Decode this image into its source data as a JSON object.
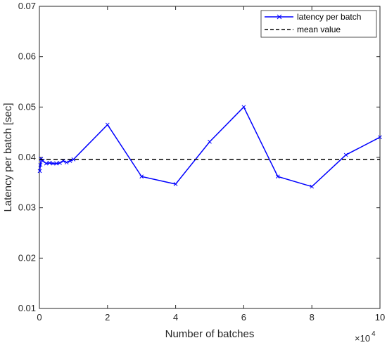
{
  "chart_data": {
    "type": "line",
    "xlabel": "Number of batches",
    "ylabel": "Latency per batch [sec]",
    "x_exponent_label": "×10",
    "x_exponent_power": "4",
    "xlim": [
      0,
      10
    ],
    "ylim": [
      0.01,
      0.07
    ],
    "x_scale_note": "x values shown in units of 10^4 batches",
    "x_ticks": [
      0,
      2,
      4,
      6,
      8,
      10
    ],
    "x_tick_labels": [
      "0",
      "2",
      "4",
      "6",
      "8",
      "10"
    ],
    "y_ticks": [
      0.01,
      0.02,
      0.03,
      0.04,
      0.05,
      0.06,
      0.07
    ],
    "y_tick_labels": [
      "0.01",
      "0.02",
      "0.03",
      "0.04",
      "0.05",
      "0.06",
      "0.07"
    ],
    "grid": false,
    "legend_position": "top-right",
    "series": [
      {
        "name": "latency per batch",
        "color": "#0000ff",
        "style": "solid",
        "marker": "x",
        "x": [
          0.01,
          0.03,
          0.05,
          0.1,
          0.2,
          0.3,
          0.4,
          0.5,
          0.6,
          0.7,
          0.8,
          0.9,
          1.0,
          2,
          3,
          4,
          5,
          6,
          7,
          8,
          9,
          10
        ],
        "values": [
          0.0373,
          0.0385,
          0.0397,
          0.0393,
          0.0388,
          0.0389,
          0.0388,
          0.0388,
          0.0389,
          0.0393,
          0.039,
          0.0393,
          0.0396,
          0.0465,
          0.0362,
          0.0347,
          0.0431,
          0.05,
          0.0362,
          0.0342,
          0.0405,
          0.044
        ]
      },
      {
        "name": "mean value",
        "color": "#000000",
        "style": "dashed",
        "marker": "none",
        "x": [
          0,
          10
        ],
        "values": [
          0.0396,
          0.0396
        ]
      }
    ]
  }
}
